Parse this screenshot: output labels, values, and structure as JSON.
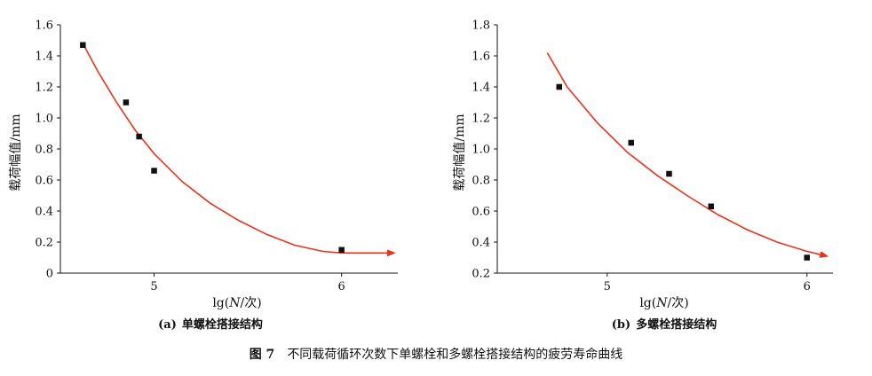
{
  "figure_caption": {
    "label": "图 7",
    "text": "不同载荷循环次数下单螺栓和多螺栓搭接结构的疲劳寿命曲线"
  },
  "colors": {
    "curve": "#e8331c",
    "marker": "#111111",
    "axis": "#111111"
  },
  "chart_data": [
    {
      "type": "scatter",
      "caption": "(a) 单螺栓搭接结构",
      "caption_label": "(a)",
      "caption_text": "单螺栓搭接结构",
      "xlabel": "lg(N/次)",
      "xlabel_parts": [
        "lg(",
        "N",
        "/次)"
      ],
      "ylabel": "载荷幅值/mm",
      "xlim": [
        4.5,
        6.3
      ],
      "ylim": [
        0,
        1.6
      ],
      "x_ticks": [
        5,
        6
      ],
      "x_tick_labels": [
        "5",
        "6"
      ],
      "y_ticks": [
        0,
        0.2,
        0.4,
        0.6,
        0.8,
        1.0,
        1.2,
        1.4,
        1.6
      ],
      "y_tick_labels": [
        "0",
        "0.2",
        "0.4",
        "0.6",
        "0.8",
        "1.0",
        "1.2",
        "1.4",
        "1.6"
      ],
      "points": [
        {
          "x": 4.62,
          "y": 1.47
        },
        {
          "x": 4.85,
          "y": 1.1
        },
        {
          "x": 4.92,
          "y": 0.88
        },
        {
          "x": 5.0,
          "y": 0.66
        },
        {
          "x": 6.0,
          "y": 0.15
        }
      ],
      "fit_curve": [
        {
          "x": 4.62,
          "y": 1.48
        },
        {
          "x": 4.7,
          "y": 1.3
        },
        {
          "x": 4.8,
          "y": 1.1
        },
        {
          "x": 4.9,
          "y": 0.92
        },
        {
          "x": 5.0,
          "y": 0.77
        },
        {
          "x": 5.15,
          "y": 0.59
        },
        {
          "x": 5.3,
          "y": 0.45
        },
        {
          "x": 5.45,
          "y": 0.34
        },
        {
          "x": 5.6,
          "y": 0.25
        },
        {
          "x": 5.75,
          "y": 0.18
        },
        {
          "x": 5.9,
          "y": 0.14
        },
        {
          "x": 6.0,
          "y": 0.13
        },
        {
          "x": 6.28,
          "y": 0.13
        }
      ]
    },
    {
      "type": "scatter",
      "caption": "(b) 多螺栓搭接结构",
      "caption_label": "(b)",
      "caption_text": "多螺栓搭接结构",
      "xlabel": "lg(N/次)",
      "xlabel_parts": [
        "lg(",
        "N",
        "/次)"
      ],
      "ylabel": "载荷幅值/mm",
      "xlim": [
        4.45,
        6.13
      ],
      "ylim": [
        0.2,
        1.8
      ],
      "x_ticks": [
        5,
        6
      ],
      "x_tick_labels": [
        "5",
        "6"
      ],
      "y_ticks": [
        0.2,
        0.4,
        0.6,
        0.8,
        1.0,
        1.2,
        1.4,
        1.6,
        1.8
      ],
      "y_tick_labels": [
        "0.2",
        "0.4",
        "0.6",
        "0.8",
        "1.0",
        "1.2",
        "1.4",
        "1.6",
        "1.8"
      ],
      "points": [
        {
          "x": 4.76,
          "y": 1.4
        },
        {
          "x": 5.12,
          "y": 1.04
        },
        {
          "x": 5.31,
          "y": 0.84
        },
        {
          "x": 5.52,
          "y": 0.63
        },
        {
          "x": 6.0,
          "y": 0.3
        }
      ],
      "fit_curve": [
        {
          "x": 4.7,
          "y": 1.62
        },
        {
          "x": 4.8,
          "y": 1.4
        },
        {
          "x": 4.95,
          "y": 1.17
        },
        {
          "x": 5.1,
          "y": 0.98
        },
        {
          "x": 5.25,
          "y": 0.83
        },
        {
          "x": 5.4,
          "y": 0.7
        },
        {
          "x": 5.55,
          "y": 0.58
        },
        {
          "x": 5.7,
          "y": 0.48
        },
        {
          "x": 5.85,
          "y": 0.4
        },
        {
          "x": 6.0,
          "y": 0.34
        },
        {
          "x": 6.1,
          "y": 0.31
        }
      ]
    }
  ]
}
